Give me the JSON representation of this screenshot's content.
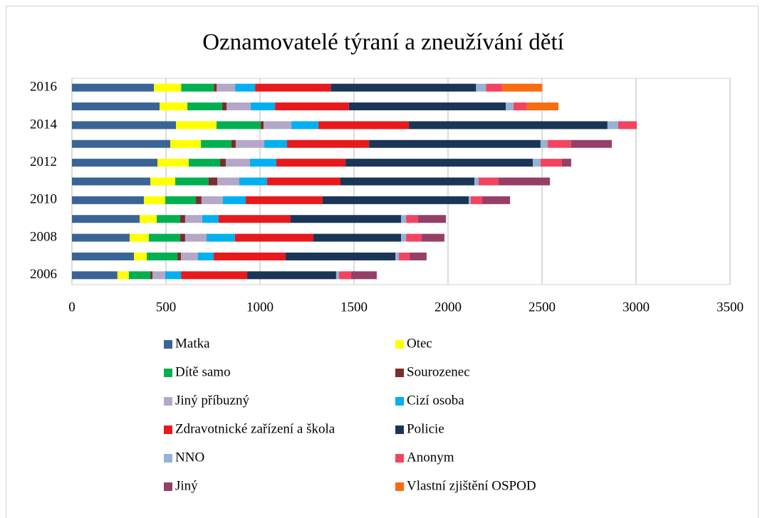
{
  "chart_data": {
    "type": "stacked-bar-horizontal",
    "title": "Oznamovatelé týraní a zneužívání dětí",
    "categories": [
      "2006",
      null,
      "2008",
      null,
      "2010",
      null,
      "2012",
      null,
      "2014",
      null,
      "2016"
    ],
    "series": [
      {
        "name": "Matka",
        "color": "#3b6496",
        "values": [
          242,
          330,
          307,
          360,
          383,
          417,
          455,
          523,
          553,
          466,
          436
        ]
      },
      {
        "name": "Otec",
        "color": "#ffff00",
        "values": [
          61,
          68,
          102,
          91,
          113,
          132,
          166,
          163,
          216,
          148,
          145
        ]
      },
      {
        "name": "Dítě samo",
        "color": "#00b050",
        "values": [
          114,
          163,
          167,
          125,
          163,
          178,
          167,
          162,
          235,
          185,
          174
        ]
      },
      {
        "name": "Sourozenec",
        "color": "#7b2c2c",
        "values": [
          11,
          19,
          26,
          26,
          30,
          46,
          30,
          23,
          15,
          23,
          15
        ]
      },
      {
        "name": "Jiný příbuzný",
        "color": "#b4a7c8",
        "values": [
          68,
          90,
          114,
          91,
          114,
          117,
          129,
          152,
          148,
          129,
          98
        ]
      },
      {
        "name": "Cizí osoba",
        "color": "#00b0f0",
        "values": [
          84,
          84,
          151,
          87,
          121,
          148,
          140,
          121,
          144,
          129,
          106
        ]
      },
      {
        "name": "Zdravotnické zařízení a škola",
        "color": "#e8191c",
        "values": [
          352,
          382,
          417,
          383,
          409,
          390,
          368,
          436,
          481,
          393,
          402
        ]
      },
      {
        "name": "Policie",
        "color": "#1a3557",
        "values": [
          473,
          584,
          466,
          587,
          777,
          712,
          996,
          912,
          1056,
          834,
          773
        ]
      },
      {
        "name": "NNO",
        "color": "#95b3d7",
        "values": [
          15,
          19,
          27,
          27,
          11,
          23,
          41,
          38,
          57,
          41,
          53
        ]
      },
      {
        "name": "Anonym",
        "color": "#f4435f",
        "values": [
          65,
          56,
          83,
          64,
          61,
          106,
          114,
          125,
          99,
          72,
          87
        ]
      },
      {
        "name": "Jiný",
        "color": "#953f68",
        "values": [
          136,
          91,
          121,
          148,
          148,
          273,
          49,
          216,
          0,
          0,
          0
        ]
      },
      {
        "name": "Vlastní zjištění OSPOD",
        "color": "#f96b0f",
        "values": [
          0,
          0,
          0,
          0,
          0,
          0,
          0,
          0,
          0,
          167,
          212
        ]
      }
    ],
    "xlim": [
      0,
      3500
    ],
    "xticks": [
      0,
      500,
      1000,
      1500,
      2000,
      2500,
      3000,
      3500
    ],
    "grid": true
  }
}
